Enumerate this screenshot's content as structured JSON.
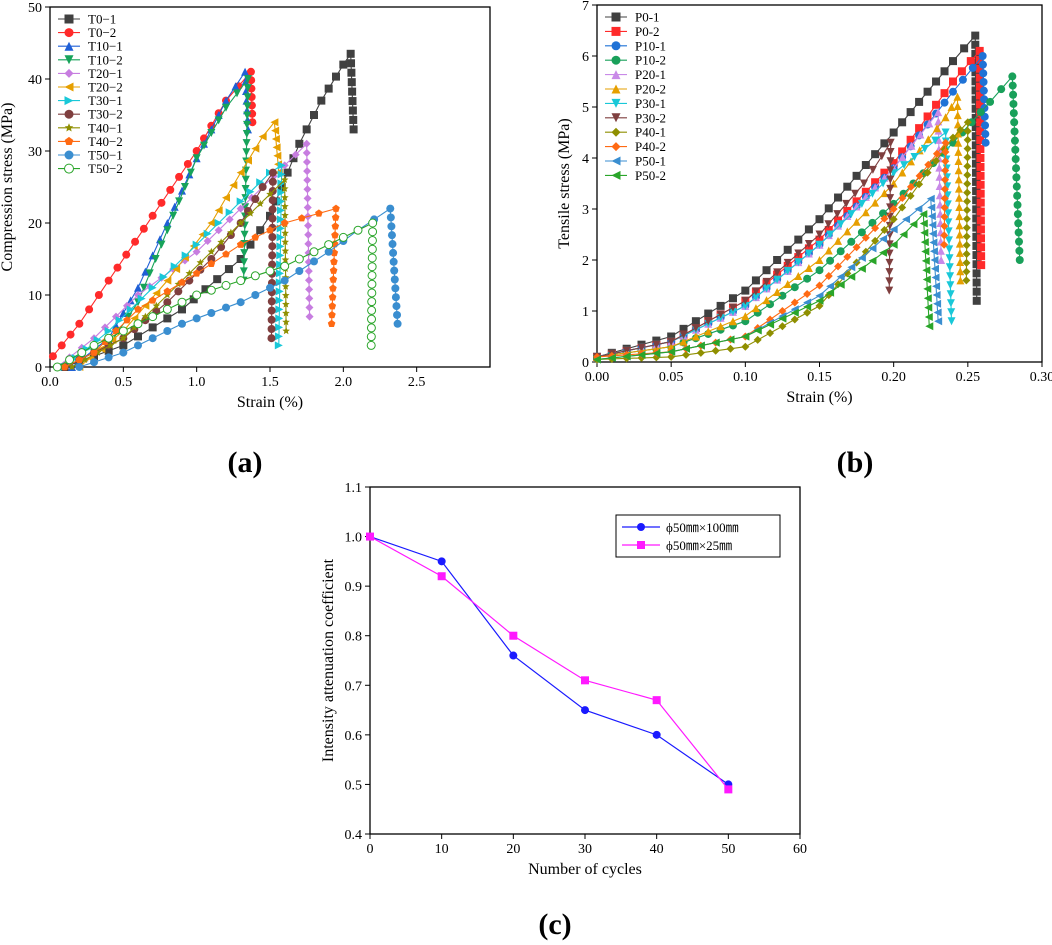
{
  "panels": {
    "a": "(a)",
    "b": "(b)",
    "c": "(c)"
  },
  "chart_data": [
    {
      "id": "a",
      "type": "line",
      "xlabel": "Strain (%)",
      "ylabel": "Compression stress (MPa)",
      "xlim": [
        0,
        3.0
      ],
      "ylim": [
        0,
        50
      ],
      "xticks": [
        0,
        0.5,
        1.0,
        1.5,
        2.0,
        2.5
      ],
      "xtick_labels": [
        "0.0",
        "0.5",
        "1.0",
        "1.5",
        "2.0",
        "2.5"
      ],
      "yticks": [
        0,
        10,
        20,
        30,
        40,
        50
      ],
      "ytick_labels": [
        "0",
        "10",
        "20",
        "30",
        "40",
        "50"
      ],
      "legend_position": "top-left",
      "series": [
        {
          "name": "T0−1",
          "color": "#404040",
          "marker": "square",
          "ascend": [
            [
              0.1,
              0
            ],
            [
              0.5,
              3
            ],
            [
              0.9,
              8
            ],
            [
              1.3,
              15
            ],
            [
              1.5,
              21
            ],
            [
              1.7,
              31
            ],
            [
              1.85,
              37
            ],
            [
              2.0,
              42
            ],
            [
              2.05,
              43.5
            ]
          ],
          "drop": [
            2.07,
            33
          ]
        },
        {
          "name": "T0−2",
          "color": "#ff2a2a",
          "marker": "circle",
          "ascend": [
            [
              0.02,
              1.5
            ],
            [
              0.2,
              6
            ],
            [
              0.4,
              12
            ],
            [
              0.7,
              21
            ],
            [
              1.0,
              30
            ],
            [
              1.2,
              37
            ],
            [
              1.37,
              41
            ]
          ],
          "drop": [
            1.38,
            34
          ]
        },
        {
          "name": "T10−1",
          "color": "#1f5fd6",
          "marker": "triangle-up",
          "ascend": [
            [
              0.15,
              0
            ],
            [
              0.4,
              4
            ],
            [
              0.6,
              11
            ],
            [
              0.8,
              20
            ],
            [
              1.0,
              29
            ],
            [
              1.2,
              37
            ],
            [
              1.33,
              41
            ]
          ],
          "drop": [
            1.35,
            33
          ]
        },
        {
          "name": "T10−2",
          "color": "#17a35a",
          "marker": "triangle-down",
          "ascend": [
            [
              0.1,
              0
            ],
            [
              0.4,
              3
            ],
            [
              0.6,
              9
            ],
            [
              0.8,
              19
            ],
            [
              1.0,
              29
            ],
            [
              1.2,
              36
            ],
            [
              1.35,
              40
            ]
          ],
          "drop": [
            1.32,
            12
          ]
        },
        {
          "name": "T20−1",
          "color": "#c77de0",
          "marker": "diamond",
          "ascend": [
            [
              0.05,
              0
            ],
            [
              0.3,
              4
            ],
            [
              0.6,
              10
            ],
            [
              1.0,
              16
            ],
            [
              1.3,
              22
            ],
            [
              1.6,
              28
            ],
            [
              1.75,
              31
            ]
          ],
          "drop": [
            1.77,
            7
          ]
        },
        {
          "name": "T20−2",
          "color": "#e69f00",
          "marker": "triangle-left",
          "ascend": [
            [
              0.2,
              0
            ],
            [
              0.5,
              5
            ],
            [
              0.8,
              12
            ],
            [
              1.1,
              20
            ],
            [
              1.3,
              27
            ],
            [
              1.45,
              32
            ],
            [
              1.53,
              34
            ]
          ],
          "drop": [
            1.56,
            27
          ]
        },
        {
          "name": "T30−1",
          "color": "#19c8d8",
          "marker": "triangle-right",
          "ascend": [
            [
              0.1,
              0
            ],
            [
              0.4,
              5
            ],
            [
              0.7,
              11
            ],
            [
              1.0,
              17
            ],
            [
              1.3,
              23
            ],
            [
              1.5,
              27
            ],
            [
              1.58,
              28
            ]
          ],
          "drop": [
            1.56,
            3
          ]
        },
        {
          "name": "T30−2",
          "color": "#7f3f3f",
          "marker": "circle",
          "ascend": [
            [
              0.1,
              0
            ],
            [
              0.5,
              4
            ],
            [
              0.8,
              9
            ],
            [
              1.1,
              15
            ],
            [
              1.3,
              20
            ],
            [
              1.45,
              25
            ],
            [
              1.52,
              27
            ]
          ],
          "drop": [
            1.51,
            4
          ]
        },
        {
          "name": "T40−1",
          "color": "#8f8f00",
          "marker": "star",
          "ascend": [
            [
              0.15,
              0
            ],
            [
              0.5,
              4
            ],
            [
              0.8,
              10
            ],
            [
              1.1,
              16
            ],
            [
              1.3,
              20
            ],
            [
              1.5,
              24
            ],
            [
              1.6,
              26
            ]
          ],
          "drop": [
            1.61,
            5
          ]
        },
        {
          "name": "T40−2",
          "color": "#ff6a13",
          "marker": "pentagon",
          "ascend": [
            [
              0.1,
              0
            ],
            [
              0.3,
              2
            ],
            [
              0.6,
              8
            ],
            [
              1.0,
              13
            ],
            [
              1.3,
              17
            ],
            [
              1.6,
              20
            ],
            [
              1.95,
              22
            ]
          ],
          "drop": [
            1.92,
            6
          ]
        },
        {
          "name": "T50−1",
          "color": "#3a8ed0",
          "marker": "circle",
          "ascend": [
            [
              0.2,
              0
            ],
            [
              0.5,
              2
            ],
            [
              0.9,
              6
            ],
            [
              1.3,
              9
            ],
            [
              1.6,
              12
            ],
            [
              1.9,
              16
            ],
            [
              2.1,
              19
            ],
            [
              2.32,
              22
            ]
          ],
          "drop": [
            2.37,
            6
          ]
        },
        {
          "name": "T50−2",
          "color": "#2aa52a",
          "marker": "open-circle",
          "ascend": [
            [
              0.05,
              0
            ],
            [
              0.3,
              3
            ],
            [
              0.7,
              7
            ],
            [
              1.0,
              10
            ],
            [
              1.3,
              12
            ],
            [
              1.6,
              14
            ],
            [
              1.9,
              17
            ],
            [
              2.2,
              20
            ]
          ],
          "drop": [
            2.19,
            3
          ]
        }
      ]
    },
    {
      "id": "b",
      "type": "line",
      "xlabel": "Strain (%)",
      "ylabel": "Tensile stress (MPa)",
      "xlim": [
        0,
        0.3
      ],
      "ylim": [
        0,
        7
      ],
      "xticks": [
        0,
        0.05,
        0.1,
        0.15,
        0.2,
        0.25,
        0.3
      ],
      "xtick_labels": [
        "0.00",
        "0.05",
        "0.10",
        "0.15",
        "0.20",
        "0.25",
        "0.30"
      ],
      "yticks": [
        0,
        1,
        2,
        3,
        4,
        5,
        6,
        7
      ],
      "ytick_labels": [
        "0",
        "1",
        "2",
        "3",
        "4",
        "5",
        "6",
        "7"
      ],
      "legend_position": "top-left",
      "series": [
        {
          "name": "P0-1",
          "color": "#404040",
          "marker": "square",
          "ascend": [
            [
              0,
              0.1
            ],
            [
              0.05,
              0.5
            ],
            [
              0.1,
              1.4
            ],
            [
              0.15,
              2.8
            ],
            [
              0.2,
              4.5
            ],
            [
              0.24,
              5.9
            ],
            [
              0.255,
              6.4
            ]
          ],
          "drop": [
            0.256,
            1.2
          ]
        },
        {
          "name": "P0-2",
          "color": "#ff2a2a",
          "marker": "square",
          "ascend": [
            [
              0,
              0.1
            ],
            [
              0.05,
              0.4
            ],
            [
              0.1,
              1.2
            ],
            [
              0.15,
              2.4
            ],
            [
              0.2,
              3.9
            ],
            [
              0.24,
              5.5
            ],
            [
              0.258,
              6.1
            ]
          ],
          "drop": [
            0.259,
            1.9
          ]
        },
        {
          "name": "P10-1",
          "color": "#1f72d6",
          "marker": "circle",
          "ascend": [
            [
              0,
              0.1
            ],
            [
              0.05,
              0.4
            ],
            [
              0.1,
              1.1
            ],
            [
              0.15,
              2.3
            ],
            [
              0.2,
              3.8
            ],
            [
              0.24,
              5.3
            ],
            [
              0.26,
              6.0
            ]
          ],
          "drop": [
            0.262,
            4.3
          ]
        },
        {
          "name": "P10-2",
          "color": "#19a05a",
          "marker": "circle",
          "ascend": [
            [
              0,
              0.1
            ],
            [
              0.05,
              0.3
            ],
            [
              0.1,
              0.8
            ],
            [
              0.15,
              1.8
            ],
            [
              0.2,
              3.1
            ],
            [
              0.24,
              4.3
            ],
            [
              0.265,
              5.1
            ],
            [
              0.28,
              5.6
            ]
          ],
          "drop": [
            0.285,
            2.0
          ]
        },
        {
          "name": "P20-1",
          "color": "#c98ae8",
          "marker": "triangle-up",
          "ascend": [
            [
              0,
              0.1
            ],
            [
              0.05,
              0.4
            ],
            [
              0.1,
              1.1
            ],
            [
              0.15,
              2.3
            ],
            [
              0.2,
              3.8
            ],
            [
              0.23,
              4.9
            ]
          ],
          "drop": [
            0.232,
            2.0
          ]
        },
        {
          "name": "P20-2",
          "color": "#e69f00",
          "marker": "triangle-up",
          "ascend": [
            [
              0,
              0.1
            ],
            [
              0.05,
              0.3
            ],
            [
              0.1,
              0.9
            ],
            [
              0.15,
              2.0
            ],
            [
              0.2,
              3.5
            ],
            [
              0.235,
              4.8
            ],
            [
              0.243,
              5.2
            ]
          ],
          "drop": [
            0.245,
            1.6
          ]
        },
        {
          "name": "P30-1",
          "color": "#19c8d8",
          "marker": "triangle-down",
          "ascend": [
            [
              0,
              0.1
            ],
            [
              0.05,
              0.4
            ],
            [
              0.1,
              1.1
            ],
            [
              0.15,
              2.3
            ],
            [
              0.2,
              3.7
            ],
            [
              0.235,
              4.5
            ]
          ],
          "drop": [
            0.239,
            0.8
          ]
        },
        {
          "name": "P30-2",
          "color": "#7f3f3f",
          "marker": "triangle-down",
          "ascend": [
            [
              0,
              0.1
            ],
            [
              0.05,
              0.4
            ],
            [
              0.1,
              1.2
            ],
            [
              0.15,
              2.5
            ],
            [
              0.18,
              3.5
            ],
            [
              0.198,
              4.3
            ]
          ],
          "drop": [
            0.197,
            1.4
          ]
        },
        {
          "name": "P40-1",
          "color": "#8f8f00",
          "marker": "diamond",
          "ascend": [
            [
              0,
              0.05
            ],
            [
              0.05,
              0.1
            ],
            [
              0.1,
              0.3
            ],
            [
              0.15,
              1.1
            ],
            [
              0.2,
              2.8
            ],
            [
              0.24,
              4.4
            ],
            [
              0.25,
              4.7
            ]
          ],
          "drop": [
            0.249,
            1.6
          ]
        },
        {
          "name": "P40-2",
          "color": "#ff6a13",
          "marker": "diamond",
          "ascend": [
            [
              0,
              0.1
            ],
            [
              0.05,
              0.2
            ],
            [
              0.1,
              0.5
            ],
            [
              0.15,
              1.5
            ],
            [
              0.2,
              3.0
            ],
            [
              0.235,
              4.3
            ]
          ],
          "drop": [
            0.234,
            2.3
          ]
        },
        {
          "name": "P50-1",
          "color": "#3a8ed0",
          "marker": "triangle-left",
          "ascend": [
            [
              0,
              0.05
            ],
            [
              0.05,
              0.2
            ],
            [
              0.1,
              0.5
            ],
            [
              0.15,
              1.3
            ],
            [
              0.2,
              2.6
            ],
            [
              0.225,
              3.2
            ]
          ],
          "drop": [
            0.23,
            0.8
          ]
        },
        {
          "name": "P50-2",
          "color": "#2aa52a",
          "marker": "triangle-left",
          "ascend": [
            [
              0,
              0.05
            ],
            [
              0.05,
              0.2
            ],
            [
              0.1,
              0.5
            ],
            [
              0.15,
              1.2
            ],
            [
              0.2,
              2.3
            ],
            [
              0.22,
              2.9
            ]
          ],
          "drop": [
            0.224,
            0.7
          ]
        }
      ]
    },
    {
      "id": "c",
      "type": "line",
      "xlabel": "Number of cycles",
      "ylabel": "Intensity attenuation coefficient",
      "xlim": [
        0,
        60
      ],
      "ylim": [
        0.4,
        1.1
      ],
      "xticks": [
        0,
        10,
        20,
        30,
        40,
        50,
        60
      ],
      "xtick_labels": [
        "0",
        "10",
        "20",
        "30",
        "40",
        "50",
        "60"
      ],
      "yticks": [
        0.4,
        0.5,
        0.6,
        0.7,
        0.8,
        0.9,
        1.0,
        1.1
      ],
      "ytick_labels": [
        "0.4",
        "0.5",
        "0.6",
        "0.7",
        "0.8",
        "0.9",
        "1.0",
        "1.1"
      ],
      "legend_position": "top-right",
      "series": [
        {
          "name": "ϕ50㎜×100㎜",
          "color": "#1a1aff",
          "marker": "circle",
          "x": [
            0,
            10,
            20,
            30,
            40,
            50
          ],
          "y": [
            1.0,
            0.95,
            0.76,
            0.65,
            0.6,
            0.5
          ]
        },
        {
          "name": "ϕ50㎜×25㎜",
          "color": "#ff19ff",
          "marker": "square",
          "x": [
            0,
            10,
            20,
            30,
            40,
            50
          ],
          "y": [
            1.0,
            0.92,
            0.8,
            0.71,
            0.67,
            0.49
          ]
        }
      ]
    }
  ]
}
